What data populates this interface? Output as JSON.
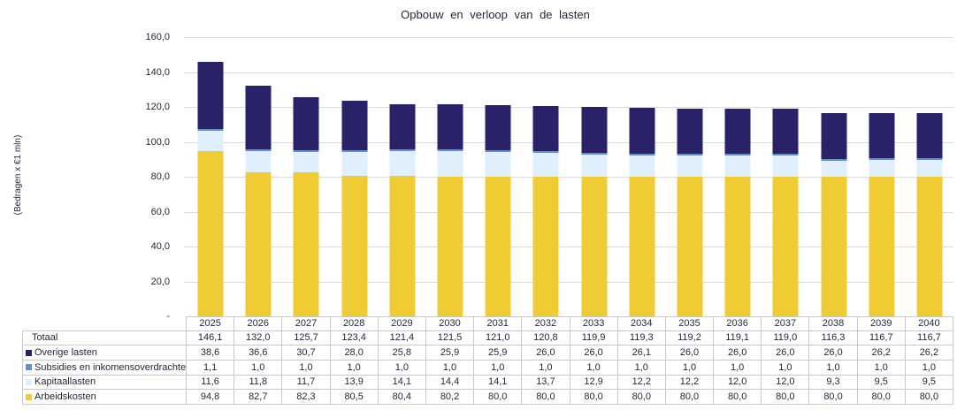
{
  "chart": {
    "y_tick_labels": [
      "160,0",
      "140,0",
      "120,0",
      "100,0",
      "80,0",
      "60,0",
      "40,0",
      "20,0",
      "-"
    ],
    "colors": {
      "overige_lasten": "#2A2268",
      "subsidies_en_inkomensoverdrachten": "#6390CC",
      "kapitaallasten": "#DFEFFC",
      "arbeidskosten": "#EFCC33",
      "gridline": "#DCDCDC",
      "table_border": "#C9C9C9",
      "text": "#1F2637"
    }
  },
  "chart_data": {
    "type": "bar",
    "stacked": true,
    "title": "Opbouw en verloop van de lasten",
    "ylabel": "(Bedragen x €1 mln)",
    "xlabel": "",
    "ylim": [
      0,
      160
    ],
    "ytick_step": 20,
    "grid": "horizontal",
    "legend_position": "table-rows-below-chart",
    "categories": [
      "2025",
      "2026",
      "2027",
      "2028",
      "2029",
      "2030",
      "2031",
      "2032",
      "2033",
      "2034",
      "2035",
      "2036",
      "2037",
      "2038",
      "2039",
      "2040"
    ],
    "series": [
      {
        "name": "Arbeidskosten",
        "color": "#EFCC33",
        "values": [
          94.8,
          82.7,
          82.3,
          80.5,
          80.4,
          80.2,
          80.0,
          80.0,
          80.0,
          80.0,
          80.0,
          80.0,
          80.0,
          80.0,
          80.0,
          80.0
        ]
      },
      {
        "name": "Kapitaallasten",
        "color": "#DFEFFC",
        "values": [
          11.6,
          11.8,
          11.7,
          13.9,
          14.1,
          14.4,
          14.1,
          13.7,
          12.9,
          12.2,
          12.2,
          12.0,
          12.0,
          9.3,
          9.5,
          9.5
        ]
      },
      {
        "name": "Subsidies en inkomensoverdrachten",
        "color": "#6390CC",
        "values": [
          1.1,
          1.0,
          1.0,
          1.0,
          1.0,
          1.0,
          1.0,
          1.0,
          1.0,
          1.0,
          1.0,
          1.0,
          1.0,
          1.0,
          1.0,
          1.0
        ]
      },
      {
        "name": "Overige lasten",
        "color": "#2A2268",
        "values": [
          38.6,
          36.6,
          30.7,
          28.0,
          25.8,
          25.9,
          25.9,
          26.0,
          26.0,
          26.1,
          26.0,
          26.0,
          26.0,
          26.0,
          26.2,
          26.2
        ]
      }
    ],
    "totals": [
      146.1,
      132.0,
      125.7,
      123.4,
      121.4,
      121.5,
      121.0,
      120.8,
      119.9,
      119.3,
      119.2,
      119.1,
      119.0,
      116.3,
      116.7,
      116.7
    ]
  },
  "table": {
    "total_label": "Totaal"
  }
}
